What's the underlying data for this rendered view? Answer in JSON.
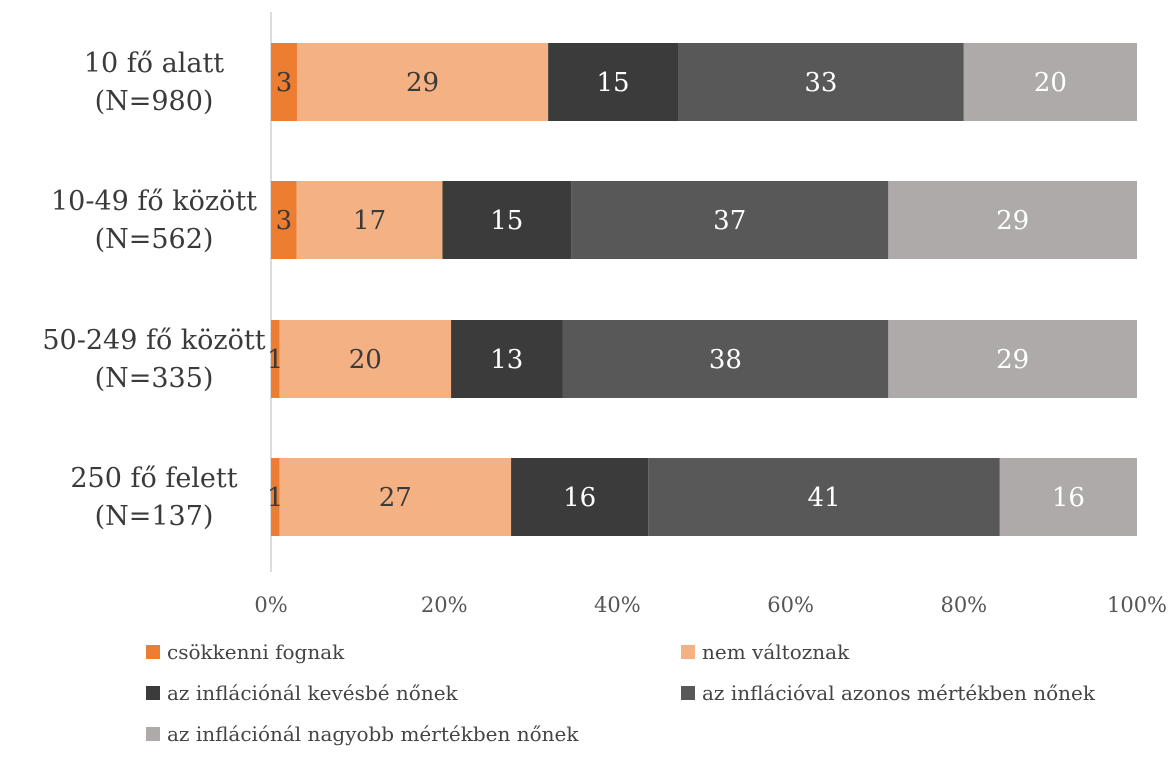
{
  "chart_data": {
    "type": "bar",
    "orientation": "horizontal",
    "stacked": true,
    "title": "",
    "xlabel": "",
    "ylabel": "",
    "xlim": [
      0,
      100
    ],
    "x_ticks": [
      "0%",
      "20%",
      "40%",
      "60%",
      "80%",
      "100%"
    ],
    "categories": [
      [
        "10 fő alatt",
        "(N=980)"
      ],
      [
        "10-49 fő között",
        "(N=562)"
      ],
      [
        "50-249 fő között",
        "(N=335)"
      ],
      [
        "250 fő felett",
        "(N=137)"
      ]
    ],
    "series": [
      {
        "name": "csökkenni fognak",
        "color": "#ED7D31",
        "label_color": "#3a3a3a",
        "values": [
          3,
          3,
          1,
          1
        ]
      },
      {
        "name": "nem változnak",
        "color": "#F4B183",
        "label_color": "#3a3a3a",
        "values": [
          29,
          17,
          20,
          27
        ]
      },
      {
        "name": "az inflációnál kevésbé nőnek",
        "color": "#3B3B3B",
        "label_color": "#ffffff",
        "values": [
          15,
          15,
          13,
          16
        ]
      },
      {
        "name": "az inflációval azonos mértékben nőnek",
        "color": "#585858",
        "label_color": "#ffffff",
        "values": [
          33,
          37,
          38,
          41
        ]
      },
      {
        "name": "az inflációnál nagyobb mértékben nőnek",
        "color": "#AEAAAA",
        "label_color": "#ffffff",
        "values": [
          20,
          29,
          29,
          16
        ]
      }
    ],
    "grid": false,
    "legend_position": "bottom"
  }
}
